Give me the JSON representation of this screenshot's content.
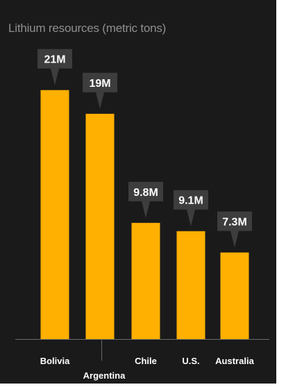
{
  "colors": {
    "background": "#1a1a1a",
    "bar": "#ffb000",
    "callout": "#3d3d3d",
    "title_text": "#8f8f8f",
    "label_text": "#ffffff",
    "axis": "#6a6a6a"
  },
  "chart_data": {
    "type": "bar",
    "title": "Lithium resources (metric tons)",
    "categories": [
      "Bolivia",
      "Argentina",
      "Chile",
      "U.S.",
      "Australia"
    ],
    "values": [
      21000000,
      19000000,
      9800000,
      9100000,
      7300000
    ],
    "data_labels": [
      "21M",
      "19M",
      "9.8M",
      "9.1M",
      "7.3M"
    ],
    "ylim": [
      0,
      23500000
    ],
    "grid": false,
    "legend": "none"
  }
}
